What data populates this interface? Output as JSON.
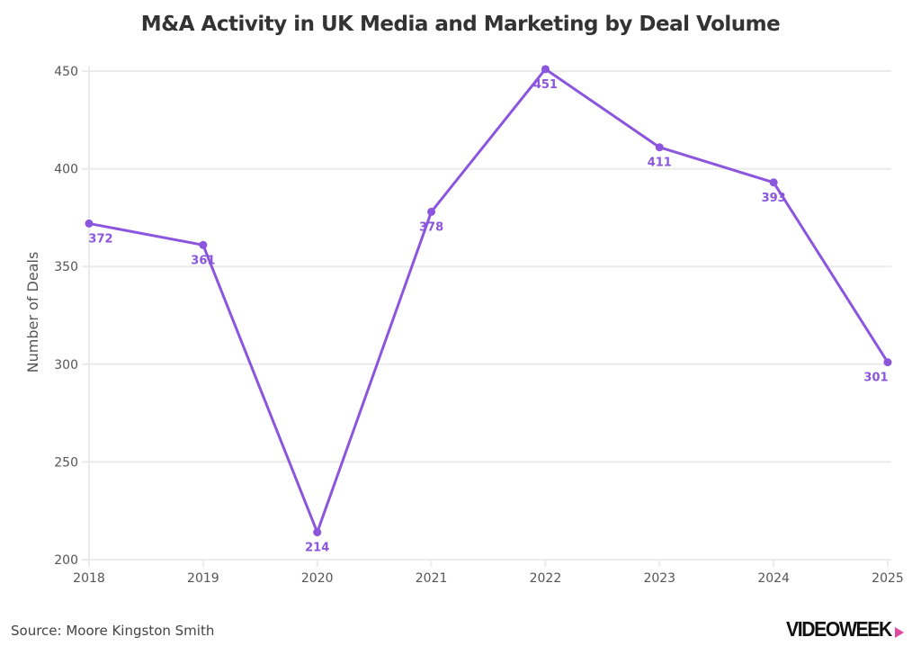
{
  "chart_data": {
    "type": "line",
    "title": "M&A Activity in UK Media and Marketing by Deal Volume",
    "xlabel": "",
    "ylabel": "Number of Deals",
    "x": [
      "2018",
      "2019",
      "2020",
      "2021",
      "2022",
      "2023",
      "2024",
      "2025"
    ],
    "series": [
      {
        "name": "Number of Deals",
        "values": [
          372,
          361,
          214,
          378,
          451,
          411,
          393,
          301
        ],
        "color": "#8b55de"
      }
    ],
    "data_labels": [
      "372",
      "361",
      "214",
      "378",
      "451",
      "411",
      "393",
      "301"
    ],
    "ylim": [
      200,
      450
    ],
    "yticks": [
      200,
      250,
      300,
      350,
      400,
      450
    ],
    "grid": true,
    "legend": "none"
  },
  "footer": {
    "source": "Source: Moore Kingston Smith",
    "logo": "VIDEOWEEK",
    "logo_accent_color": "#e0479e"
  }
}
